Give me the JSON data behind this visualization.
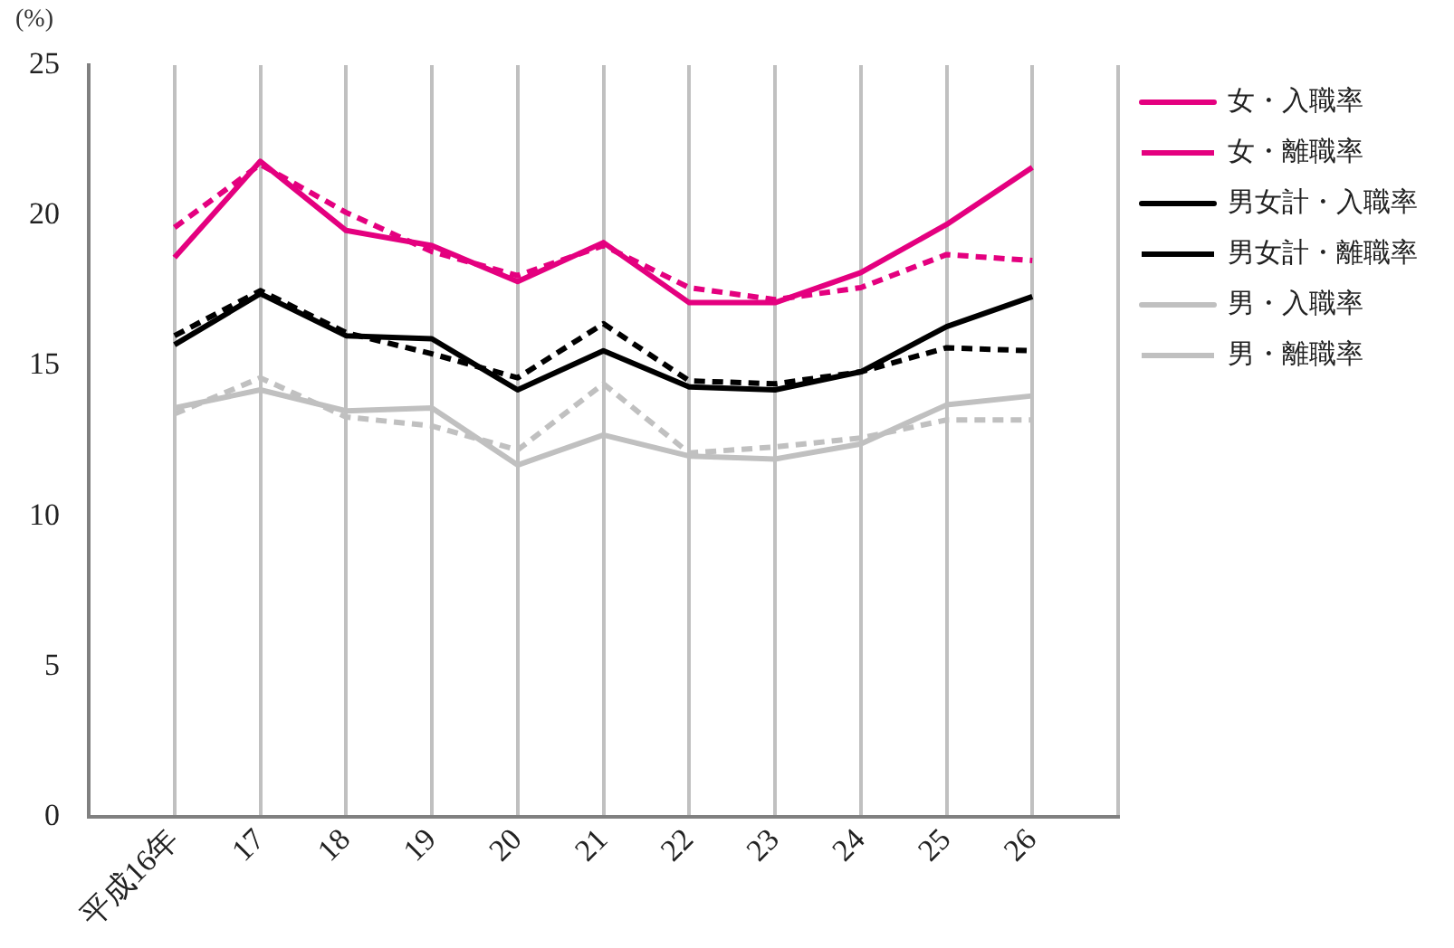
{
  "chart_data": {
    "type": "line",
    "ylabel": "(%)",
    "categories": [
      "平成16年",
      "17",
      "18",
      "19",
      "20",
      "21",
      "22",
      "23",
      "24",
      "25",
      "26"
    ],
    "ylim": [
      0,
      25
    ],
    "yticks": [
      0,
      5,
      10,
      15,
      20,
      25
    ],
    "grid": "x",
    "legend": "right",
    "marker": "none",
    "series": [
      {
        "name": "女・入職率",
        "color": "#e4007f",
        "line_style": "solid",
        "values": [
          18.6,
          21.8,
          19.5,
          19.0,
          17.8,
          19.1,
          17.1,
          17.1,
          18.1,
          19.7,
          21.6
        ]
      },
      {
        "name": "女・離職率",
        "color": "#e4007f",
        "line_style": "dashed",
        "values": [
          19.6,
          21.7,
          20.1,
          18.8,
          18.0,
          19.0,
          17.6,
          17.2,
          17.6,
          18.7,
          18.5
        ]
      },
      {
        "name": "男女計・入職率",
        "color": "#000000",
        "line_style": "solid",
        "values": [
          15.7,
          17.4,
          16.0,
          15.9,
          14.2,
          15.5,
          14.3,
          14.2,
          14.8,
          16.3,
          17.3
        ]
      },
      {
        "name": "男女計・離職率",
        "color": "#000000",
        "line_style": "dashed",
        "values": [
          16.0,
          17.5,
          16.1,
          15.4,
          14.6,
          16.4,
          14.5,
          14.4,
          14.8,
          15.6,
          15.5
        ]
      },
      {
        "name": "男・入職率",
        "color": "#c0c0c0",
        "line_style": "solid",
        "values": [
          13.6,
          14.2,
          13.5,
          13.6,
          11.7,
          12.7,
          12.0,
          11.9,
          12.4,
          13.7,
          14.0
        ]
      },
      {
        "name": "男・離職率",
        "color": "#c0c0c0",
        "line_style": "dashed",
        "values": [
          13.4,
          14.6,
          13.3,
          13.0,
          12.2,
          14.4,
          12.1,
          12.3,
          12.6,
          13.2,
          13.2
        ]
      }
    ]
  }
}
